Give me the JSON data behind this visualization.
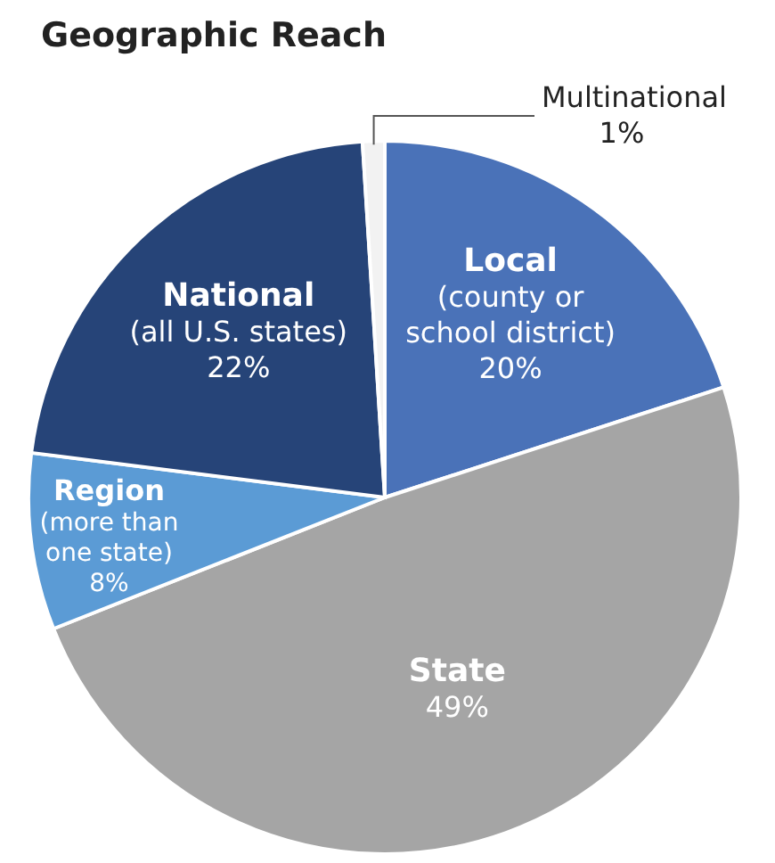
{
  "chart_data": {
    "type": "pie",
    "title": "Geographic Reach",
    "categories": [
      "Local\n(county or\nschool district)",
      "State",
      "Region\n(more than\none state)",
      "National\n(all U.S. states)",
      "Multinational"
    ],
    "values": [
      20,
      49,
      8,
      22,
      1
    ],
    "value_labels": [
      "20%",
      "49%",
      "8%",
      "22%",
      "1%"
    ],
    "colors": [
      "#4a72b8",
      "#a5a5a5",
      "#5b9bd5",
      "#264478",
      "#f2f2f2"
    ]
  }
}
